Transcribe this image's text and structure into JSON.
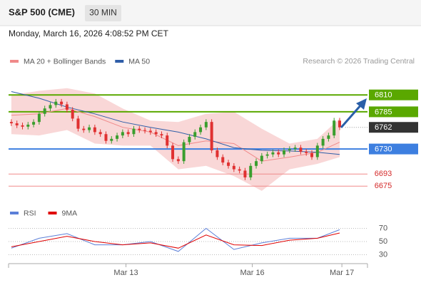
{
  "header": {
    "title": "S&P 500 (CME)",
    "timeframe": "30 MIN",
    "timestamp": "Monday, March 16, 2026 4:08:52 PM CET"
  },
  "credit": "Research © 2026 Trading Central",
  "chart_data": [
    {
      "type": "candlestick",
      "open": [
        6770,
        6768,
        6765,
        6763,
        6766,
        6770,
        6782,
        6790,
        6795,
        6800,
        6796,
        6788,
        6775,
        6760,
        6758,
        6762,
        6755,
        6752,
        6742,
        6745,
        6750,
        6755,
        6752,
        6760,
        6758,
        6757,
        6755,
        6752,
        6750,
        6735,
        6715,
        6712,
        6740,
        6748,
        6755,
        6762,
        6770,
        6728,
        6718,
        6710,
        6705,
        6700,
        6698,
        6688,
        6705,
        6712,
        6720,
        6722,
        6725,
        6722,
        6728,
        6730,
        6732,
        6726,
        6724,
        6718,
        6735,
        6745,
        6750,
        6772
      ],
      "high": [
        6774,
        6772,
        6769,
        6770,
        6774,
        6786,
        6794,
        6799,
        6804,
        6804,
        6800,
        6792,
        6779,
        6764,
        6766,
        6766,
        6759,
        6756,
        6749,
        6754,
        6759,
        6759,
        6764,
        6764,
        6762,
        6761,
        6759,
        6756,
        6754,
        6739,
        6719,
        6744,
        6752,
        6759,
        6766,
        6774,
        6774,
        6732,
        6722,
        6714,
        6709,
        6704,
        6702,
        6709,
        6716,
        6724,
        6726,
        6729,
        6729,
        6732,
        6734,
        6736,
        6736,
        6730,
        6728,
        6739,
        6749,
        6754,
        6776,
        6776
      ],
      "low": [
        6764,
        6761,
        6759,
        6759,
        6762,
        6766,
        6778,
        6786,
        6791,
        6792,
        6784,
        6771,
        6756,
        6754,
        6754,
        6751,
        6748,
        6738,
        6738,
        6741,
        6746,
        6748,
        6748,
        6754,
        6753,
        6751,
        6748,
        6746,
        6731,
        6711,
        6708,
        6708,
        6736,
        6744,
        6751,
        6758,
        6724,
        6714,
        6706,
        6701,
        6696,
        6694,
        6684,
        6684,
        6701,
        6708,
        6716,
        6718,
        6718,
        6718,
        6724,
        6726,
        6722,
        6720,
        6714,
        6714,
        6731,
        6741,
        6746,
        6758
      ],
      "close": [
        6768,
        6765,
        6763,
        6766,
        6770,
        6782,
        6790,
        6795,
        6800,
        6796,
        6788,
        6775,
        6760,
        6758,
        6762,
        6755,
        6752,
        6742,
        6745,
        6750,
        6755,
        6752,
        6760,
        6758,
        6757,
        6755,
        6752,
        6750,
        6735,
        6715,
        6712,
        6740,
        6748,
        6755,
        6762,
        6770,
        6728,
        6718,
        6710,
        6705,
        6700,
        6698,
        6688,
        6705,
        6712,
        6720,
        6722,
        6725,
        6722,
        6728,
        6730,
        6732,
        6726,
        6724,
        6718,
        6735,
        6745,
        6750,
        6772,
        6762
      ],
      "up_color": "#3a9e2e",
      "down_color": "#e03131",
      "indicator_x": [
        0,
        5,
        10,
        15,
        20,
        25,
        30,
        35,
        40,
        45,
        50,
        55,
        59
      ],
      "series": [
        {
          "name": "MA 20 + Bollinger Bands",
          "color": "#f08a8a",
          "values": [
            6780,
            6782,
            6790,
            6778,
            6762,
            6755,
            6735,
            6742,
            6738,
            6712,
            6718,
            6725,
            6740
          ]
        },
        {
          "name": "MA 50",
          "color": "#2f5ea8",
          "values": [
            6815,
            6805,
            6792,
            6782,
            6770,
            6762,
            6755,
            6745,
            6732,
            6728,
            6727,
            6725,
            6722
          ]
        }
      ],
      "bands": {
        "color": "#f7c9c9",
        "upper": [
          6810,
          6816,
          6820,
          6812,
          6790,
          6772,
          6770,
          6782,
          6785,
          6760,
          6738,
          6745,
          6775
        ],
        "lower": [
          6752,
          6750,
          6758,
          6738,
          6735,
          6735,
          6700,
          6705,
          6690,
          6668,
          6700,
          6708,
          6718
        ]
      },
      "levels": [
        {
          "value": 6810,
          "color": "#5aa800",
          "style": "box"
        },
        {
          "value": 6785,
          "color": "#5aa800",
          "style": "box"
        },
        {
          "value": 6762,
          "color": "#333333",
          "style": "current"
        },
        {
          "value": 6730,
          "color": "#3d7fe0",
          "style": "box"
        },
        {
          "value": 6693,
          "color": "#f08a8a",
          "style": "text"
        },
        {
          "value": 6675,
          "color": "#f08a8a",
          "style": "text"
        }
      ],
      "ylim": [
        6650,
        6845
      ],
      "xlim": [
        -0.5,
        64
      ],
      "xticks": [
        {
          "value": 20.6,
          "label": "Mar 13"
        },
        {
          "value": 43.3,
          "label": "Mar 16"
        },
        {
          "value": 59.4,
          "label": "Mar 17"
        }
      ]
    },
    {
      "type": "line",
      "x": [
        0,
        5,
        10,
        15,
        20,
        25,
        30,
        35,
        40,
        45,
        50,
        55,
        59
      ],
      "series": [
        {
          "name": "RSI",
          "color": "#5b7fd8",
          "values": [
            40,
            55,
            62,
            45,
            45,
            50,
            35,
            70,
            38,
            48,
            55,
            55,
            68
          ]
        },
        {
          "name": "9MA",
          "color": "#e00000",
          "values": [
            42,
            50,
            58,
            50,
            45,
            48,
            40,
            60,
            45,
            44,
            52,
            55,
            63
          ]
        }
      ],
      "ylim": [
        10,
        90
      ],
      "yticks": [
        30,
        50,
        70
      ],
      "xlim": [
        -0.5,
        64
      ]
    }
  ]
}
